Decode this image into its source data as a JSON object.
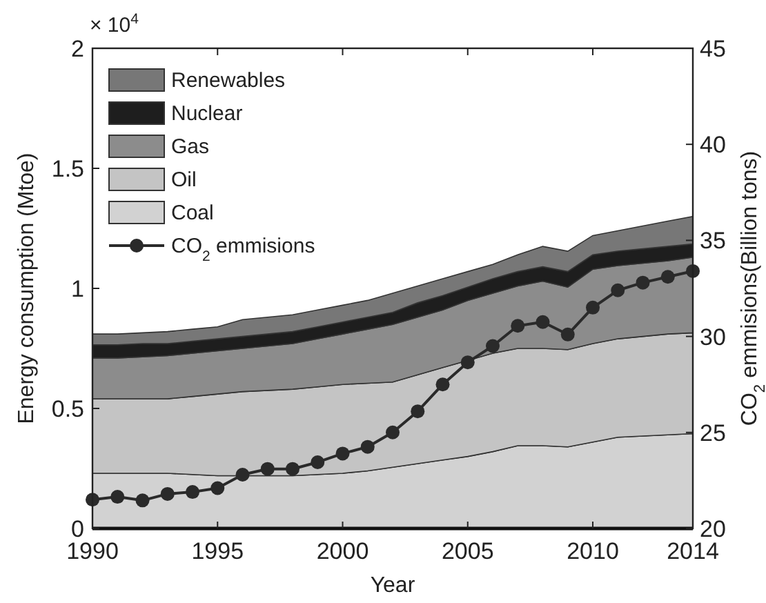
{
  "chart_data": {
    "type": "area",
    "stacked": true,
    "xlabel": "Year",
    "ylabel": "Energy consumption (Mtoe)",
    "y2label": "CO$_{2}$ emmisions(Billion tons)",
    "annotations": [
      "× 10$^{4}$"
    ],
    "x": [
      1990,
      1991,
      1992,
      1993,
      1994,
      1995,
      1996,
      1997,
      1998,
      1999,
      2000,
      2001,
      2002,
      2003,
      2004,
      2005,
      2006,
      2007,
      2008,
      2009,
      2010,
      2011,
      2012,
      2013,
      2014
    ],
    "xlim": [
      1990,
      2014
    ],
    "xticks": [
      1990,
      1995,
      2000,
      2005,
      2010,
      2014
    ],
    "ylim": [
      0,
      2
    ],
    "yticks": [
      0,
      0.5,
      1,
      1.5,
      2
    ],
    "y2lim": [
      20,
      45
    ],
    "y2ticks": [
      20,
      25,
      30,
      35,
      40,
      45
    ],
    "legend": "top left",
    "series": [
      {
        "name": "Coal",
        "color": "#d2d2d2",
        "values": [
          0.23,
          0.23,
          0.23,
          0.23,
          0.225,
          0.22,
          0.22,
          0.22,
          0.22,
          0.225,
          0.23,
          0.24,
          0.255,
          0.27,
          0.285,
          0.3,
          0.32,
          0.345,
          0.345,
          0.34,
          0.36,
          0.38,
          0.385,
          0.39,
          0.395
        ]
      },
      {
        "name": "Oil",
        "color": "#c4c4c4",
        "values": [
          0.31,
          0.31,
          0.31,
          0.31,
          0.325,
          0.34,
          0.35,
          0.355,
          0.36,
          0.365,
          0.37,
          0.365,
          0.355,
          0.37,
          0.385,
          0.4,
          0.41,
          0.405,
          0.405,
          0.405,
          0.41,
          0.41,
          0.415,
          0.42,
          0.42
        ]
      },
      {
        "name": "Gas",
        "color": "#8c8c8c",
        "values": [
          0.17,
          0.17,
          0.175,
          0.18,
          0.18,
          0.18,
          0.18,
          0.185,
          0.19,
          0.2,
          0.21,
          0.225,
          0.24,
          0.24,
          0.24,
          0.25,
          0.25,
          0.26,
          0.28,
          0.26,
          0.31,
          0.305,
          0.305,
          0.305,
          0.315
        ]
      },
      {
        "name": "Nuclear",
        "color": "#1e1e1e",
        "values": [
          0.055,
          0.055,
          0.055,
          0.05,
          0.05,
          0.05,
          0.05,
          0.05,
          0.05,
          0.05,
          0.05,
          0.05,
          0.05,
          0.06,
          0.06,
          0.055,
          0.06,
          0.06,
          0.06,
          0.065,
          0.06,
          0.06,
          0.06,
          0.06,
          0.055
        ]
      },
      {
        "name": "Renewables",
        "color": "#777777",
        "values": [
          0.045,
          0.045,
          0.045,
          0.05,
          0.05,
          0.05,
          0.07,
          0.07,
          0.07,
          0.07,
          0.07,
          0.07,
          0.08,
          0.07,
          0.07,
          0.065,
          0.06,
          0.07,
          0.085,
          0.085,
          0.08,
          0.085,
          0.095,
          0.105,
          0.115
        ]
      },
      {
        "name": "CO$_{2}$ emmisions",
        "type": "line",
        "axis": "y2",
        "marker": "circle",
        "color": "#2a2a2a",
        "values": [
          21.5,
          21.65,
          21.46,
          21.8,
          21.9,
          22.1,
          22.8,
          23.1,
          23.1,
          23.45,
          23.9,
          24.25,
          25.0,
          26.1,
          27.5,
          28.65,
          29.5,
          30.55,
          30.75,
          30.1,
          31.5,
          32.4,
          32.8,
          33.1,
          33.4
        ]
      }
    ]
  }
}
